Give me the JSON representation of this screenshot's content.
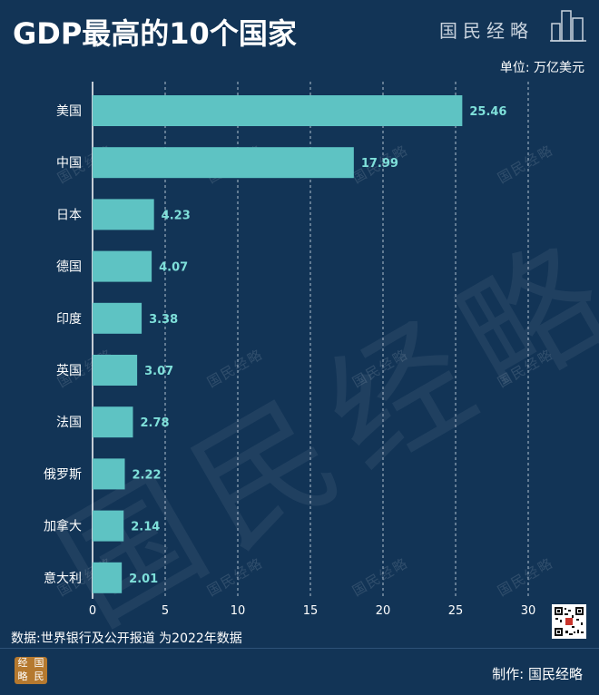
{
  "header": {
    "title": "GDP最高的10个国家",
    "brand": "国民经略",
    "unit": "单位: 万亿美元"
  },
  "chart_data": {
    "type": "bar",
    "orientation": "horizontal",
    "title": "GDP最高的10个国家",
    "unit": "万亿美元",
    "categories": [
      "美国",
      "中国",
      "日本",
      "德国",
      "印度",
      "英国",
      "法国",
      "俄罗斯",
      "加拿大",
      "意大利"
    ],
    "values": [
      25.46,
      17.99,
      4.23,
      4.07,
      3.38,
      3.07,
      2.78,
      2.22,
      2.14,
      2.01
    ],
    "xlim": [
      0,
      30
    ],
    "xticks": [
      0,
      5,
      10,
      15,
      20,
      25,
      30
    ],
    "grid": "vertical-dashed",
    "bar_color": "#5ec3c3",
    "label_color": "#7fe0da"
  },
  "watermark": {
    "text": "国民经略",
    "color": "#ffffff"
  },
  "footer": {
    "source": "数据:世界银行及公开报道   为2022年数据",
    "maker": "制作: 国民经略",
    "seal_chars": [
      "经",
      "国",
      "略",
      "民"
    ]
  },
  "colors": {
    "background": "#123456",
    "seal": "#b5792f"
  }
}
